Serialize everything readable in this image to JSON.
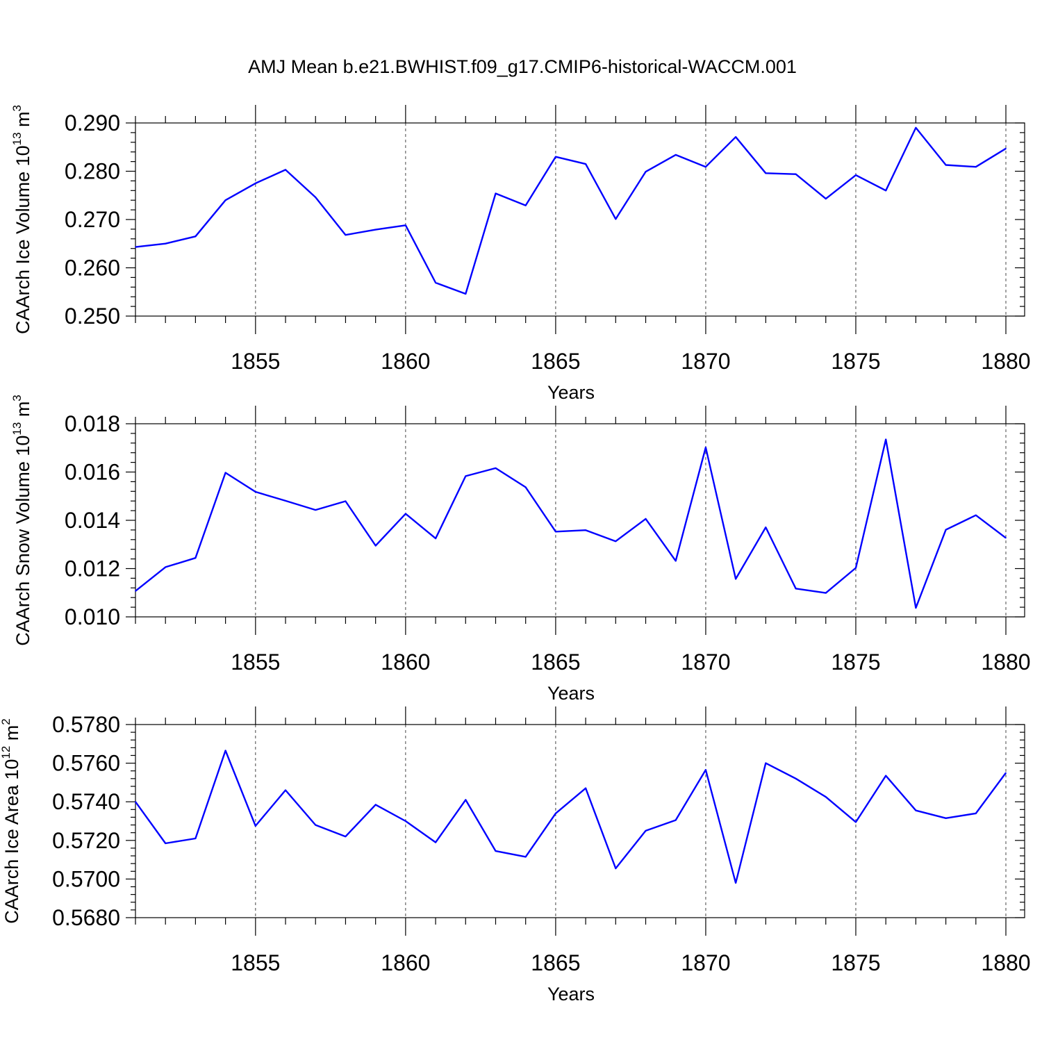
{
  "figure_title": "AMJ Mean b.e21.BWHIST.f09_g17.CMIP6-historical-WACCM.001",
  "chart_data": [
    {
      "type": "line",
      "ylabel_main": "CAArch Ice Volume 10",
      "ylabel_exp": "13",
      "ylabel_unit": " m",
      "ylabel_unit_exp": "3",
      "xlabel": "Years",
      "xlim": [
        1851,
        1880
      ],
      "ylim": [
        0.25,
        0.29
      ],
      "x_ticks": [
        "1855",
        "1860",
        "1865",
        "1870",
        "1875",
        "1880"
      ],
      "y_ticks": [
        "0.250",
        "0.260",
        "0.270",
        "0.280",
        "0.290"
      ],
      "grid": "vertical dashed at major x ticks",
      "line_color": "#0000ff",
      "x": [
        1851,
        1852,
        1853,
        1854,
        1855,
        1856,
        1857,
        1858,
        1859,
        1860,
        1861,
        1862,
        1863,
        1864,
        1865,
        1866,
        1867,
        1868,
        1869,
        1870,
        1871,
        1872,
        1873,
        1874,
        1875,
        1876,
        1877,
        1878,
        1879,
        1880
      ],
      "values": [
        0.2643,
        0.265,
        0.2665,
        0.274,
        0.2775,
        0.2803,
        0.2746,
        0.2668,
        0.2679,
        0.2688,
        0.2569,
        0.2546,
        0.2754,
        0.2729,
        0.283,
        0.2815,
        0.2701,
        0.2799,
        0.2834,
        0.2809,
        0.2871,
        0.2796,
        0.2794,
        0.2743,
        0.2792,
        0.276,
        0.289,
        0.2813,
        0.2809,
        0.2847
      ]
    },
    {
      "type": "line",
      "ylabel_main": "CAArch Snow Volume 10",
      "ylabel_exp": "13",
      "ylabel_unit": " m",
      "ylabel_unit_exp": "3",
      "xlabel": "Years",
      "xlim": [
        1851,
        1880
      ],
      "ylim": [
        0.01,
        0.018
      ],
      "x_ticks": [
        "1855",
        "1860",
        "1865",
        "1870",
        "1875",
        "1880"
      ],
      "y_ticks": [
        "0.010",
        "0.012",
        "0.014",
        "0.016",
        "0.018"
      ],
      "grid": "vertical dashed at major x ticks",
      "line_color": "#0000ff",
      "x": [
        1851,
        1852,
        1853,
        1854,
        1855,
        1856,
        1857,
        1858,
        1859,
        1860,
        1861,
        1862,
        1863,
        1864,
        1865,
        1866,
        1867,
        1868,
        1869,
        1870,
        1871,
        1872,
        1873,
        1874,
        1875,
        1876,
        1877,
        1878,
        1879,
        1880
      ],
      "values": [
        0.01107,
        0.01206,
        0.01244,
        0.01597,
        0.01518,
        0.01481,
        0.01443,
        0.01479,
        0.01295,
        0.01427,
        0.01325,
        0.01583,
        0.01616,
        0.01537,
        0.01353,
        0.01359,
        0.01313,
        0.01406,
        0.01232,
        0.01702,
        0.01157,
        0.01371,
        0.01117,
        0.01099,
        0.01203,
        0.01735,
        0.01037,
        0.01361,
        0.01421,
        0.01327
      ]
    },
    {
      "type": "line",
      "ylabel_main": "CAArch Ice Area 10",
      "ylabel_exp": "12",
      "ylabel_unit": " m",
      "ylabel_unit_exp": "2",
      "xlabel": "Years",
      "xlim": [
        1851,
        1880
      ],
      "ylim": [
        0.568,
        0.578
      ],
      "x_ticks": [
        "1855",
        "1860",
        "1865",
        "1870",
        "1875",
        "1880"
      ],
      "y_ticks": [
        "0.5680",
        "0.5700",
        "0.5720",
        "0.5740",
        "0.5760",
        "0.5780"
      ],
      "grid": "vertical dashed at major x ticks",
      "line_color": "#0000ff",
      "x": [
        1851,
        1852,
        1853,
        1854,
        1855,
        1856,
        1857,
        1858,
        1859,
        1860,
        1861,
        1862,
        1863,
        1864,
        1865,
        1866,
        1867,
        1868,
        1869,
        1870,
        1871,
        1872,
        1873,
        1874,
        1875,
        1876,
        1877,
        1878,
        1879,
        1880
      ],
      "values": [
        0.574,
        0.57185,
        0.5721,
        0.57665,
        0.57275,
        0.5746,
        0.5728,
        0.5722,
        0.57385,
        0.573,
        0.5719,
        0.5741,
        0.57145,
        0.57115,
        0.5734,
        0.5747,
        0.57055,
        0.5725,
        0.57305,
        0.57565,
        0.5698,
        0.576,
        0.5752,
        0.57425,
        0.57295,
        0.57535,
        0.57355,
        0.57315,
        0.5734,
        0.5755
      ]
    }
  ]
}
